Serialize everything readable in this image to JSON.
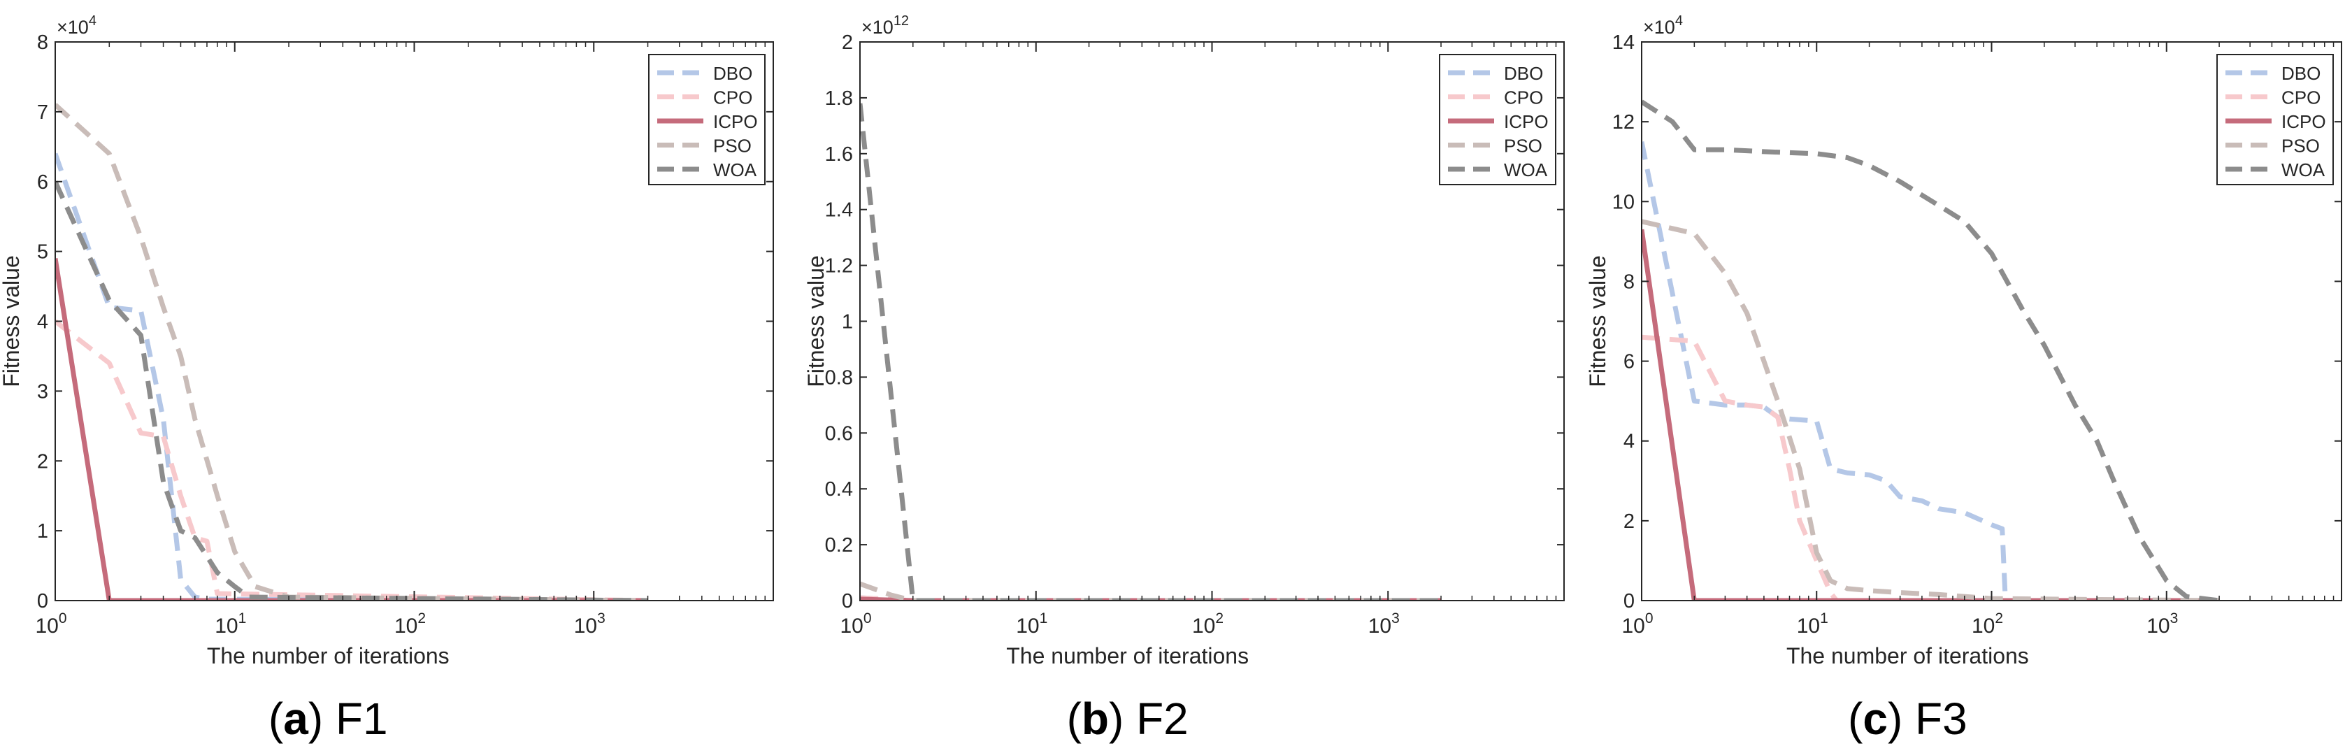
{
  "series_styles": {
    "DBO": {
      "color": "#b4c7e7",
      "dash": "dash",
      "width": "wide"
    },
    "CPO": {
      "color": "#f7c9cc",
      "dash": "dash",
      "width": "wide"
    },
    "ICPO": {
      "color": "#c56b7b",
      "dash": "solid",
      "width": "wide"
    },
    "PSO": {
      "color": "#c9bcb8",
      "dash": "dash",
      "width": "wide"
    },
    "WOA": {
      "color": "#8c8c8c",
      "dash": "dash",
      "width": "wide"
    }
  },
  "legend_order": [
    "DBO",
    "CPO",
    "ICPO",
    "PSO",
    "WOA"
  ],
  "chart_data": [
    {
      "type": "line",
      "panel": "a",
      "caption_letter": "(a)",
      "caption_name": "F1",
      "title": "",
      "xlabel": "The number of iterations",
      "ylabel": "Fitness value",
      "xscale": "log",
      "xlim": [
        1,
        10000
      ],
      "ylim": [
        0,
        8
      ],
      "y_exponent": "×10",
      "y_exponent_power": "4",
      "x_tick_values": [
        1,
        10,
        100,
        1000
      ],
      "x_tick_base": "10",
      "x_tick_powers": [
        "0",
        "1",
        "2",
        "3"
      ],
      "y_ticks": [
        0,
        1,
        2,
        3,
        4,
        5,
        6,
        7,
        8
      ],
      "y_tick_labels": [
        "0",
        "1",
        "2",
        "3",
        "4",
        "5",
        "6",
        "7",
        "8"
      ],
      "legend_position": "top-right",
      "series": [
        {
          "name": "DBO",
          "x": [
            1,
            2,
            3,
            4,
            5,
            6,
            7,
            2000
          ],
          "y": [
            6.4,
            4.2,
            4.15,
            2.6,
            0.3,
            0.05,
            0.02,
            0.0
          ]
        },
        {
          "name": "CPO",
          "x": [
            1,
            2,
            3,
            4,
            5,
            6,
            7,
            8,
            2000
          ],
          "y": [
            4.0,
            3.4,
            2.4,
            2.35,
            1.5,
            0.9,
            0.85,
            0.1,
            0.0
          ]
        },
        {
          "name": "ICPO",
          "x": [
            1,
            2,
            2000
          ],
          "y": [
            4.9,
            0.0,
            0.0
          ]
        },
        {
          "name": "PSO",
          "x": [
            1,
            2,
            3,
            4,
            5,
            6,
            8,
            10,
            13,
            20,
            2000
          ],
          "y": [
            7.1,
            6.4,
            5.2,
            4.2,
            3.5,
            2.6,
            1.5,
            0.7,
            0.2,
            0.05,
            0.0
          ]
        },
        {
          "name": "WOA",
          "x": [
            1,
            2,
            3,
            4,
            5,
            6,
            8,
            10,
            12,
            2000
          ],
          "y": [
            6.0,
            4.3,
            3.8,
            1.7,
            1.0,
            0.9,
            0.4,
            0.2,
            0.05,
            0.0
          ]
        }
      ]
    },
    {
      "type": "line",
      "panel": "b",
      "caption_letter": "(b)",
      "caption_name": "F2",
      "title": "",
      "xlabel": "The number of iterations",
      "ylabel": "Fitness value",
      "xscale": "log",
      "xlim": [
        1,
        10000
      ],
      "ylim": [
        0,
        2
      ],
      "y_exponent": "×10",
      "y_exponent_power": "12",
      "x_tick_values": [
        1,
        10,
        100,
        1000
      ],
      "x_tick_base": "10",
      "x_tick_powers": [
        "0",
        "1",
        "2",
        "3"
      ],
      "y_ticks": [
        0,
        0.2,
        0.4,
        0.6,
        0.8,
        1.0,
        1.2,
        1.4,
        1.6,
        1.8,
        2.0
      ],
      "y_tick_labels": [
        "0",
        "0.2",
        "0.4",
        "0.6",
        "0.8",
        "1",
        "1.2",
        "1.4",
        "1.6",
        "1.8",
        "2"
      ],
      "legend_position": "top-right",
      "series": [
        {
          "name": "DBO",
          "x": [
            1,
            2,
            2000
          ],
          "y": [
            0.01,
            0.0,
            0.0
          ]
        },
        {
          "name": "CPO",
          "x": [
            1,
            2,
            2000
          ],
          "y": [
            0.01,
            0.0,
            0.0
          ]
        },
        {
          "name": "ICPO",
          "x": [
            1,
            2,
            2000
          ],
          "y": [
            0.005,
            0.0,
            0.0
          ]
        },
        {
          "name": "PSO",
          "x": [
            1,
            1.5,
            2,
            2000
          ],
          "y": [
            0.06,
            0.02,
            0.0,
            0.0
          ]
        },
        {
          "name": "WOA",
          "x": [
            1,
            2,
            2000
          ],
          "y": [
            1.78,
            0.0,
            0.0
          ]
        }
      ]
    },
    {
      "type": "line",
      "panel": "c",
      "caption_letter": "(c)",
      "caption_name": "F3",
      "title": "",
      "xlabel": "The number of iterations",
      "ylabel": "Fitness value",
      "xscale": "log",
      "xlim": [
        1,
        10000
      ],
      "ylim": [
        0,
        14
      ],
      "y_exponent": "×10",
      "y_exponent_power": "4",
      "x_tick_values": [
        1,
        10,
        100,
        1000
      ],
      "x_tick_base": "10",
      "x_tick_powers": [
        "0",
        "1",
        "2",
        "3"
      ],
      "y_ticks": [
        0,
        2,
        4,
        6,
        8,
        10,
        12,
        14
      ],
      "y_tick_labels": [
        "0",
        "2",
        "4",
        "6",
        "8",
        "10",
        "12",
        "14"
      ],
      "legend_position": "top-right",
      "series": [
        {
          "name": "DBO",
          "x": [
            1,
            2,
            3,
            4,
            5,
            6,
            7,
            10,
            12,
            15,
            20,
            25,
            30,
            40,
            50,
            70,
            100,
            115,
            120,
            2000
          ],
          "y": [
            11.5,
            5.0,
            4.9,
            4.9,
            4.85,
            4.6,
            4.55,
            4.5,
            3.3,
            3.2,
            3.15,
            3.0,
            2.6,
            2.5,
            2.3,
            2.2,
            1.9,
            1.8,
            0.0,
            0.0
          ]
        },
        {
          "name": "CPO",
          "x": [
            1,
            2,
            3,
            4,
            5,
            6,
            7,
            8,
            10,
            12,
            13,
            2000
          ],
          "y": [
            6.6,
            6.5,
            5.0,
            4.9,
            4.85,
            4.6,
            3.3,
            2.0,
            1.0,
            0.2,
            0.0,
            0.0
          ]
        },
        {
          "name": "ICPO",
          "x": [
            1,
            2,
            2000
          ],
          "y": [
            9.3,
            0.0,
            0.0
          ]
        },
        {
          "name": "PSO",
          "x": [
            1,
            2,
            3,
            4,
            5,
            6,
            8,
            10,
            12,
            15,
            20,
            30,
            50,
            100,
            2000
          ],
          "y": [
            9.5,
            9.2,
            8.2,
            7.2,
            6.0,
            5.0,
            3.3,
            1.2,
            0.5,
            0.3,
            0.25,
            0.2,
            0.15,
            0.05,
            0.0
          ]
        },
        {
          "name": "WOA",
          "x": [
            1,
            1.5,
            2,
            3,
            5,
            10,
            15,
            20,
            30,
            50,
            70,
            100,
            150,
            200,
            300,
            400,
            500,
            700,
            1000,
            1300,
            2000
          ],
          "y": [
            12.5,
            12.0,
            11.3,
            11.3,
            11.25,
            11.2,
            11.1,
            10.9,
            10.5,
            9.9,
            9.5,
            8.7,
            7.3,
            6.4,
            4.9,
            4.0,
            3.0,
            1.6,
            0.5,
            0.1,
            0.0
          ]
        }
      ]
    }
  ]
}
